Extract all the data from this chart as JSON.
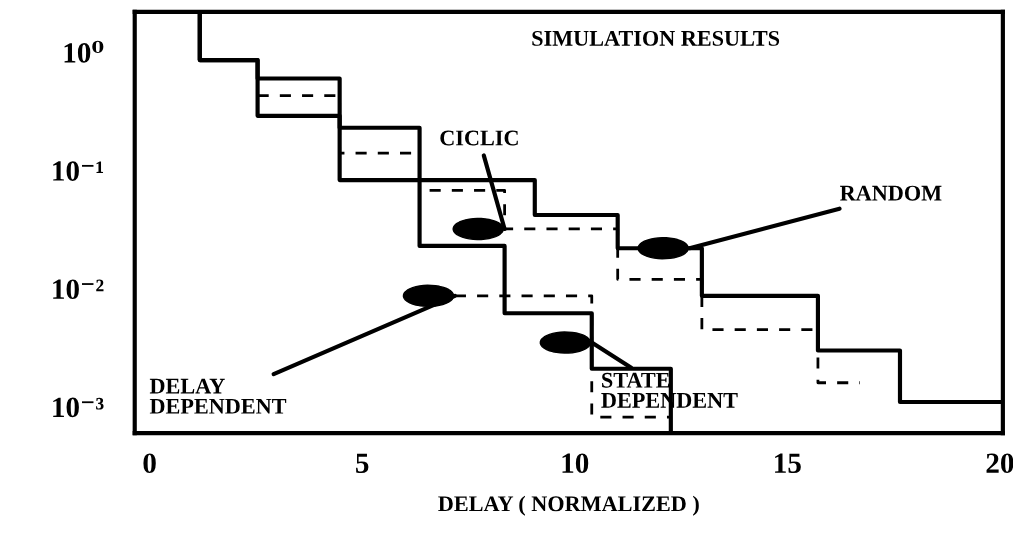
{
  "chart_data": {
    "type": "step",
    "title": "SIMULATION RESULTS",
    "xlabel": "DELAY ( NORMALIZED )",
    "xlim": [
      -0.35,
      20.07
    ],
    "xticks": [
      0,
      5,
      10,
      15,
      20
    ],
    "log": true,
    "ylim": [
      0.0006,
      2.2
    ],
    "yticks": [
      {
        "value": 1,
        "label": "10⁰"
      },
      {
        "value": 0.1,
        "label": "10⁻¹"
      },
      {
        "value": 0.01,
        "label": "10⁻²"
      },
      {
        "value": 0.001,
        "label": "10⁻³"
      }
    ],
    "series": [
      {
        "color": "#000000",
        "line_style": "solid",
        "x": [
          1.18,
          1.18,
          2.54,
          4.47,
          6.35,
          8.35,
          10.4,
          12.26
        ],
        "values": [
          2.2,
          0.86,
          0.6,
          0.23,
          0.023,
          0.0062,
          0.0021,
          0.0006
        ]
      },
      {
        "color": "#000000",
        "line_style": "solid",
        "x": [
          1.18,
          1.18,
          2.54,
          4.47,
          9.06,
          11.01,
          12.99,
          15.72,
          17.65,
          20.07
        ],
        "values": [
          2.2,
          0.86,
          0.29,
          0.083,
          0.042,
          0.022,
          0.0087,
          0.003,
          0.0011,
          0.0011
        ]
      },
      {
        "color": "#000000",
        "line_style": "dashed",
        "x": [
          2.54,
          4.47,
          6.35,
          8.35,
          11.01,
          12.99,
          15.72,
          16.71
        ],
        "values": [
          0.43,
          0.14,
          0.068,
          0.032,
          0.012,
          0.0045,
          0.0016,
          0.0016
        ]
      },
      {
        "color": "#000000",
        "line_style": "dashed",
        "x": [
          7.18,
          10.4,
          12.26
        ],
        "values": [
          0.0087,
          0.00082,
          0.00082
        ]
      }
    ],
    "annotations": [
      {
        "text": "CICLIC",
        "x": 8.35,
        "y": 0.032
      },
      {
        "text": "RANDOM",
        "x": 12.7,
        "y": 0.022
      },
      {
        "text": "DELAY\nDEPENDENT",
        "x": 7.18,
        "y": 0.0087
      },
      {
        "text": "STATE\nDEPENDENT",
        "x": 10.4,
        "y": 0.0035
      }
    ]
  }
}
